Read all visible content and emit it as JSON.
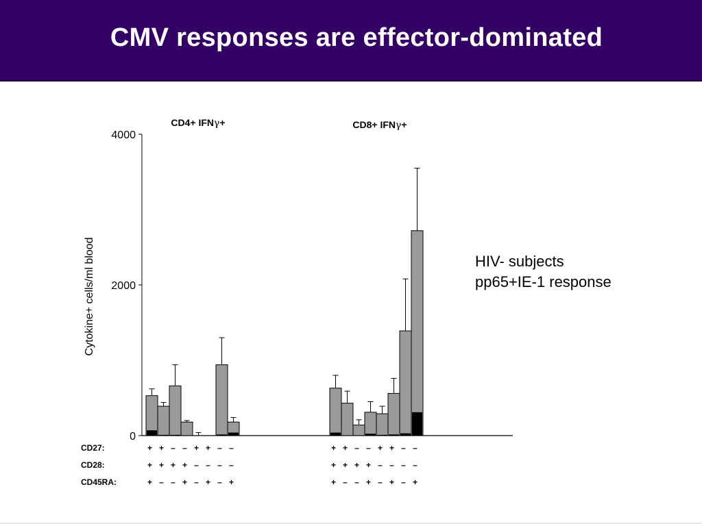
{
  "slide": {
    "title": "CMV responses are effector-dominated"
  },
  "notes": {
    "line1": "HIV- subjects",
    "line2": "pp65+IE-1 response"
  },
  "chart_data": {
    "type": "bar",
    "ylabel": "Cytokine+ cells/ml blood",
    "ylim": [
      0,
      4000
    ],
    "yticks": [
      0,
      2000,
      4000
    ],
    "panels": [
      {
        "title_prefix": "CD4+ IFN",
        "title_greek": "γ",
        "title_suffix": "+",
        "values": [
          530,
          390,
          660,
          180,
          0,
          0,
          940,
          180,
          0
        ],
        "errors": [
          620,
          440,
          940,
          200,
          40,
          0,
          1300,
          240,
          0
        ],
        "dark": [
          70,
          10,
          10,
          5,
          0,
          0,
          15,
          40,
          0
        ]
      },
      {
        "title_prefix": "CD8+ IFN",
        "title_greek": "γ",
        "title_suffix": "+",
        "values": [
          630,
          430,
          140,
          310,
          290,
          560,
          1390,
          2720,
          0
        ],
        "errors": [
          800,
          590,
          210,
          450,
          390,
          760,
          2080,
          3550,
          0
        ],
        "dark": [
          40,
          5,
          5,
          25,
          10,
          15,
          30,
          310,
          0
        ]
      }
    ],
    "row_labels": [
      "CD27:",
      "CD28:",
      "CD45RA:"
    ],
    "markers": [
      [
        "+",
        "+",
        "–",
        "–",
        "+",
        "+",
        "–",
        "–",
        ""
      ],
      [
        "+",
        "+",
        "+",
        "+",
        "–",
        "–",
        "–",
        "–",
        ""
      ],
      [
        "+",
        "–",
        "–",
        "+",
        "–",
        "+",
        "–",
        "+",
        ""
      ]
    ],
    "marker_groups": [
      [
        [
          "+",
          "+",
          "–",
          "–",
          "+",
          "+",
          "–",
          "–"
        ],
        [
          "+",
          "+",
          "+",
          "+",
          "–",
          "–",
          "–",
          "–"
        ],
        [
          "+",
          "–",
          "–",
          "+",
          "–",
          "+",
          "–",
          "+"
        ]
      ],
      [
        [
          "+",
          "+",
          "–",
          "–",
          "+",
          "+",
          "–",
          "–"
        ],
        [
          "+",
          "+",
          "+",
          "+",
          "–",
          "–",
          "–",
          "–"
        ],
        [
          "+",
          "–",
          "–",
          "+",
          "–",
          "+",
          "–",
          "+"
        ]
      ]
    ],
    "colors": {
      "bar": "#9a9a9a",
      "dark": "#000000",
      "header": "#330066"
    }
  }
}
